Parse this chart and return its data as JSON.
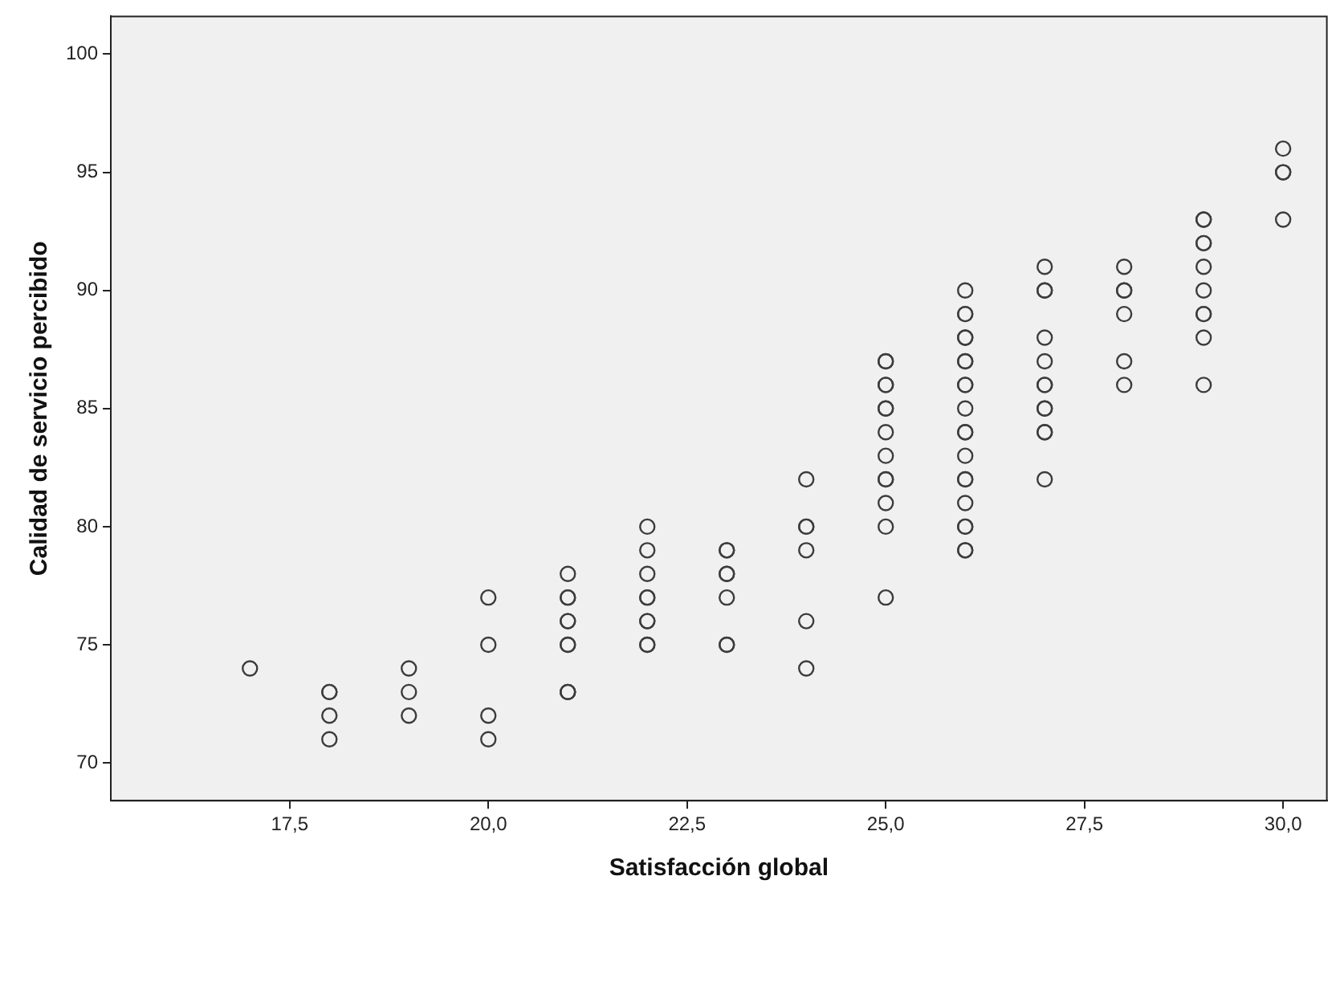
{
  "chart_data": {
    "type": "scatter",
    "xlabel": "Satisfacción global",
    "ylabel": "Calidad de servicio percibido",
    "marker": "circle",
    "grid": false,
    "color": "#3c3c3c",
    "x": [
      17,
      18,
      18,
      18,
      18,
      19,
      19,
      19,
      20,
      20,
      20,
      20,
      21,
      21,
      21,
      21,
      21,
      21,
      21,
      21,
      21,
      21,
      22,
      22,
      22,
      22,
      22,
      22,
      22,
      22,
      22,
      23,
      23,
      23,
      23,
      23,
      23,
      23,
      24,
      24,
      24,
      24,
      24,
      24,
      25,
      25,
      25,
      25,
      25,
      25,
      25,
      25,
      25,
      25,
      25,
      25,
      25,
      26,
      26,
      26,
      26,
      26,
      26,
      26,
      26,
      26,
      26,
      26,
      26,
      26,
      26,
      26,
      26,
      26,
      26,
      26,
      26,
      27,
      27,
      27,
      27,
      27,
      27,
      27,
      27,
      27,
      27,
      27,
      27,
      28,
      28,
      28,
      28,
      28,
      28,
      29,
      29,
      29,
      29,
      29,
      29,
      29,
      29,
      29,
      29,
      30,
      30,
      30,
      30
    ],
    "values": [
      74,
      73,
      73,
      72,
      71,
      74,
      73,
      72,
      77,
      75,
      72,
      71,
      78,
      77,
      77,
      76,
      76,
      75,
      75,
      73,
      73,
      73,
      80,
      79,
      78,
      77,
      77,
      76,
      76,
      75,
      75,
      79,
      79,
      78,
      78,
      77,
      75,
      75,
      82,
      80,
      80,
      79,
      76,
      74,
      87,
      87,
      86,
      86,
      85,
      85,
      84,
      83,
      82,
      82,
      81,
      80,
      77,
      90,
      89,
      89,
      88,
      88,
      87,
      87,
      86,
      86,
      85,
      84,
      84,
      83,
      82,
      82,
      81,
      80,
      80,
      79,
      79,
      91,
      90,
      90,
      88,
      87,
      86,
      86,
      85,
      85,
      84,
      84,
      82,
      91,
      90,
      90,
      89,
      87,
      86,
      93,
      93,
      92,
      92,
      91,
      90,
      89,
      89,
      88,
      86,
      96,
      95,
      95,
      93
    ],
    "xlim": [
      15.25,
      30.55
    ],
    "ylim": [
      68.4,
      101.6
    ],
    "xticks": [
      {
        "value": 17.5,
        "label": "17,5"
      },
      {
        "value": 20,
        "label": "20,0"
      },
      {
        "value": 22.5,
        "label": "22,5"
      },
      {
        "value": 25,
        "label": "25,0"
      },
      {
        "value": 27.5,
        "label": "27,5"
      },
      {
        "value": 30,
        "label": "30,0"
      }
    ],
    "yticks": [
      70,
      75,
      80,
      85,
      90,
      95,
      100
    ]
  }
}
